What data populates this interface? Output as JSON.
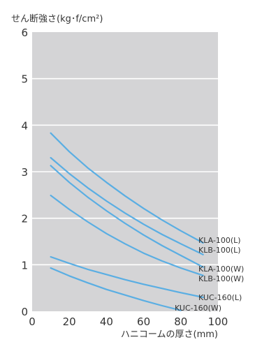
{
  "chart_data": {
    "type": "line",
    "title": "",
    "xlabel": "ハニコームの厚さ(mm)",
    "ylabel": "せん断強さ(kg･f/cm²)",
    "xlim": [
      0,
      100
    ],
    "ylim": [
      0,
      6
    ],
    "xticks": [
      0,
      20,
      40,
      60,
      80,
      100
    ],
    "yticks": [
      0,
      1,
      2,
      3,
      4,
      5,
      6
    ],
    "grid": "horizontal",
    "colors": {
      "background": "#d4d4d6",
      "grid": "#ffffff",
      "line": "#5aaee3"
    },
    "series": [
      {
        "name": "KLA-100(L)",
        "x": [
          10,
          20,
          30,
          40,
          50,
          60,
          70,
          80,
          92
        ],
        "y": [
          3.83,
          3.43,
          3.08,
          2.77,
          2.48,
          2.21,
          1.96,
          1.73,
          1.47
        ]
      },
      {
        "name": "KLB-100(L)",
        "x": [
          10,
          20,
          30,
          40,
          50,
          60,
          70,
          80,
          92
        ],
        "y": [
          3.3,
          2.96,
          2.65,
          2.37,
          2.11,
          1.87,
          1.65,
          1.45,
          1.22
        ]
      },
      {
        "name": "KLA-100(W)",
        "x": [
          10,
          20,
          30,
          40,
          50,
          60,
          70,
          80,
          92
        ],
        "y": [
          3.13,
          2.77,
          2.45,
          2.16,
          1.89,
          1.64,
          1.41,
          1.2,
          0.95
        ]
      },
      {
        "name": "KLB-100(W)",
        "x": [
          10,
          20,
          30,
          40,
          50,
          60,
          70,
          80,
          92
        ],
        "y": [
          2.49,
          2.19,
          1.92,
          1.67,
          1.45,
          1.25,
          1.08,
          0.93,
          0.77
        ]
      },
      {
        "name": "KUC-160(L)",
        "x": [
          10,
          20,
          30,
          40,
          50,
          60,
          70,
          80,
          92
        ],
        "y": [
          1.17,
          1.03,
          0.9,
          0.79,
          0.68,
          0.58,
          0.49,
          0.4,
          0.3
        ]
      },
      {
        "name": "KUC-160(W)",
        "x": [
          10,
          20,
          30,
          40,
          50,
          60,
          70,
          80
        ],
        "y": [
          0.93,
          0.76,
          0.61,
          0.47,
          0.35,
          0.23,
          0.12,
          0.02
        ]
      }
    ]
  }
}
